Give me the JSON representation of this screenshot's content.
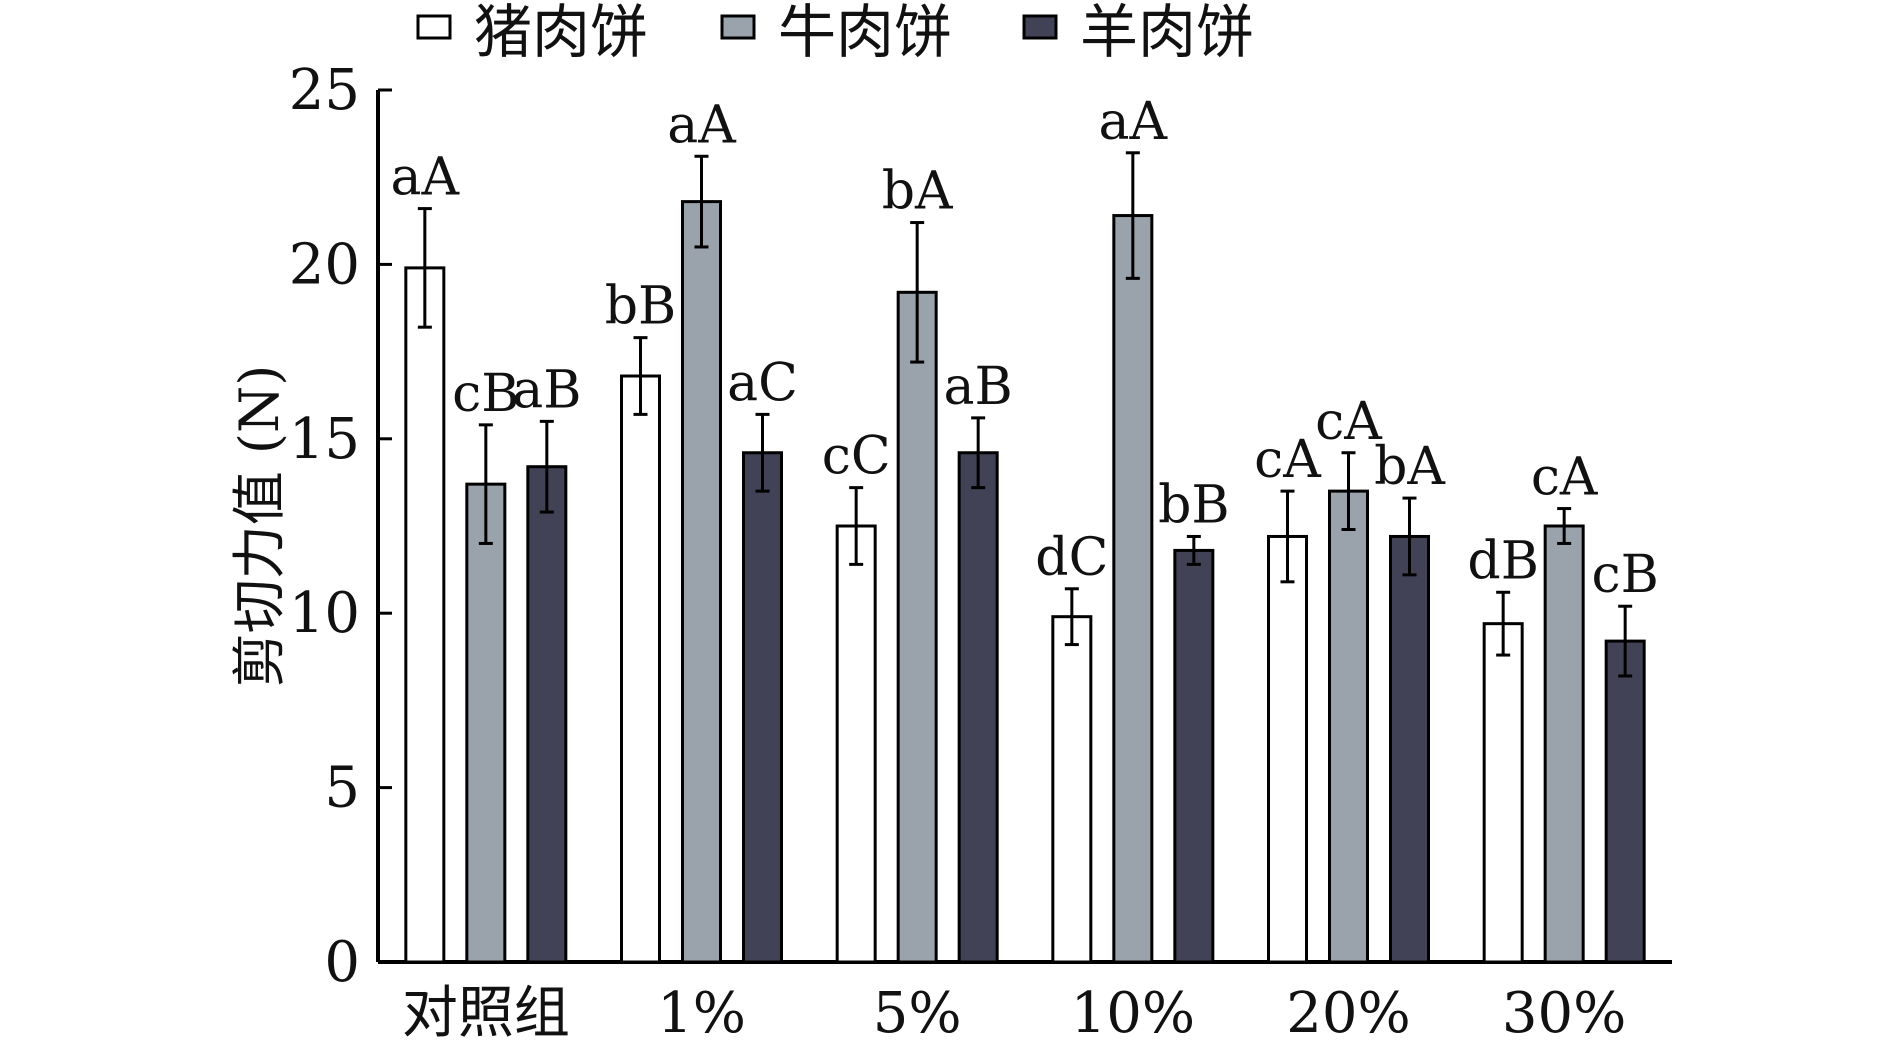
{
  "chart_data": {
    "type": "bar",
    "title": "",
    "xlabel": "",
    "ylabel": "剪切力值 (N)",
    "ylim": [
      0,
      25
    ],
    "yticks": [
      "0",
      "5",
      "10",
      "15",
      "20",
      "25"
    ],
    "categories": [
      "对照组",
      "1%",
      "5%",
      "10%",
      "20%",
      "30%"
    ],
    "legend_position": "top",
    "series": [
      {
        "name": "猪肉饼",
        "color": "#ffffff",
        "values": [
          19.9,
          16.8,
          12.5,
          9.9,
          12.2,
          9.7
        ],
        "errors": [
          1.7,
          1.1,
          1.1,
          0.8,
          1.3,
          0.9
        ],
        "labels": [
          "aA",
          "bB",
          "cC",
          "dC",
          "cA",
          "dB"
        ]
      },
      {
        "name": "牛肉饼",
        "color": "#9aa3ab",
        "values": [
          13.7,
          21.8,
          19.2,
          21.4,
          13.5,
          12.5
        ],
        "errors": [
          1.7,
          1.3,
          2.0,
          1.8,
          1.1,
          0.5
        ],
        "labels": [
          "cB",
          "aA",
          "bA",
          "aA",
          "cA",
          "cA"
        ]
      },
      {
        "name": "羊肉饼",
        "color": "#414255",
        "values": [
          14.2,
          14.6,
          14.6,
          11.8,
          12.2,
          9.2
        ],
        "errors": [
          1.3,
          1.1,
          1.0,
          0.4,
          1.1,
          1.0
        ],
        "labels": [
          "aB",
          "aC",
          "aB",
          "bB",
          "bA",
          "cB"
        ]
      }
    ]
  }
}
